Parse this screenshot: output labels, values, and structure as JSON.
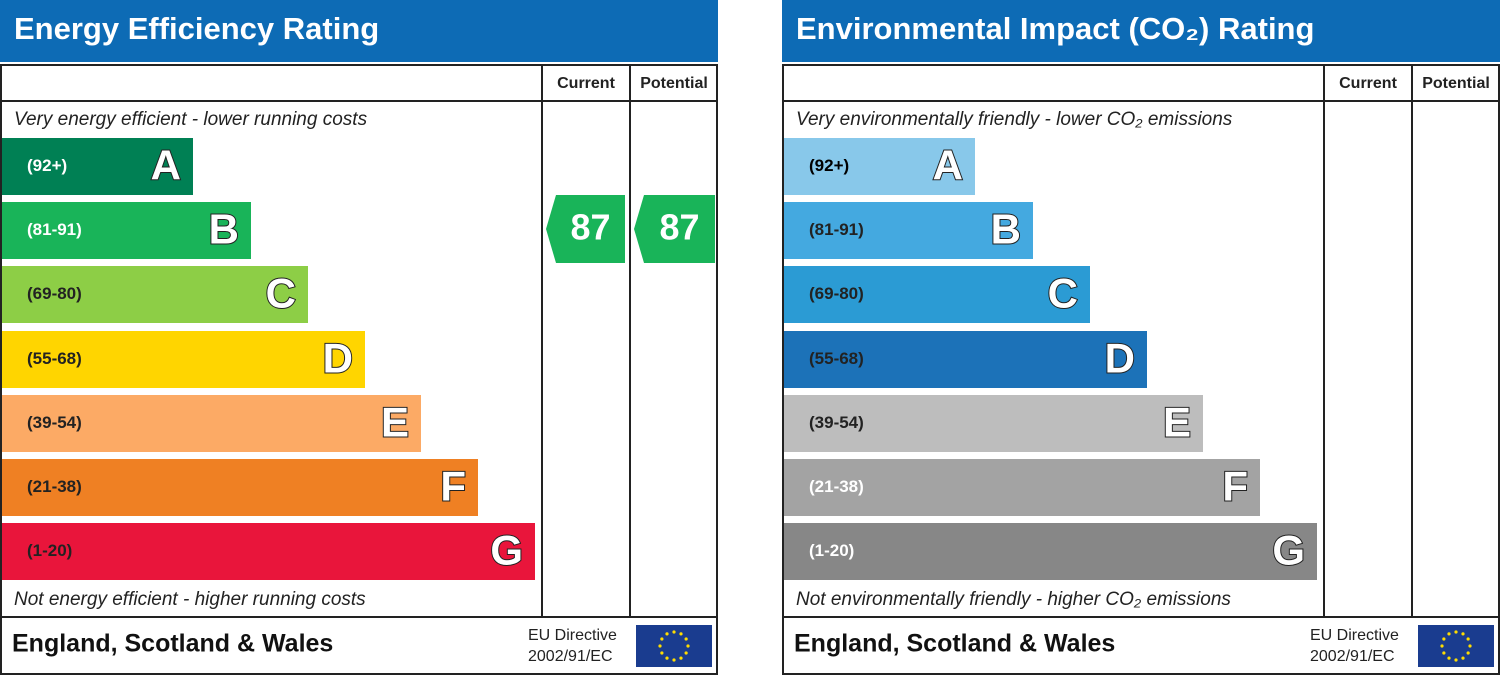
{
  "panels": [
    {
      "title": "Energy Efficiency Rating",
      "columns": [
        "Current",
        "Potential"
      ],
      "top_note": "Very energy efficient - lower running costs",
      "bottom_note": "Not energy efficient - higher running costs",
      "bands": [
        {
          "range": "(92+)",
          "letter": "A",
          "color": "#008054",
          "text_color": "#ffffff"
        },
        {
          "range": "(81-91)",
          "letter": "B",
          "color": "#19b459",
          "text_color": "#ffffff"
        },
        {
          "range": "(69-80)",
          "letter": "C",
          "color": "#8dce46",
          "text_color": "#222222"
        },
        {
          "range": "(55-68)",
          "letter": "D",
          "color": "#ffd500",
          "text_color": "#222222"
        },
        {
          "range": "(39-54)",
          "letter": "E",
          "color": "#fcaa65",
          "text_color": "#222222"
        },
        {
          "range": "(21-38)",
          "letter": "F",
          "color": "#ef8023",
          "text_color": "#222222"
        },
        {
          "range": "(1-20)",
          "letter": "G",
          "color": "#e9153b",
          "text_color": "#222222"
        }
      ],
      "current": 87,
      "potential": 87,
      "footer": "England, Scotland & Wales",
      "directive": [
        "EU Directive",
        "2002/91/EC"
      ]
    },
    {
      "title": "Environmental Impact (CO₂) Rating",
      "columns": [
        "Current",
        "Potential"
      ],
      "top_note": "Very environmentally friendly - lower CO₂ emissions",
      "bottom_note": "Not environmentally friendly - higher CO₂ emissions",
      "bands": [
        {
          "range": "(92+)",
          "letter": "A",
          "color": "#88c8ea",
          "text_color": "#000000"
        },
        {
          "range": "(81-91)",
          "letter": "B",
          "color": "#44a9e0",
          "text_color": "#222222"
        },
        {
          "range": "(69-80)",
          "letter": "C",
          "color": "#2b9bd4",
          "text_color": "#222222"
        },
        {
          "range": "(55-68)",
          "letter": "D",
          "color": "#1c72b8",
          "text_color": "#222222"
        },
        {
          "range": "(39-54)",
          "letter": "E",
          "color": "#bdbdbd",
          "text_color": "#222222"
        },
        {
          "range": "(21-38)",
          "letter": "F",
          "color": "#a3a3a3",
          "text_color": "#ffffff"
        },
        {
          "range": "(1-20)",
          "letter": "G",
          "color": "#878787",
          "text_color": "#ffffff"
        }
      ],
      "footer": "England, Scotland & Wales",
      "directive": [
        "EU Directive",
        "2002/91/EC"
      ]
    }
  ]
}
